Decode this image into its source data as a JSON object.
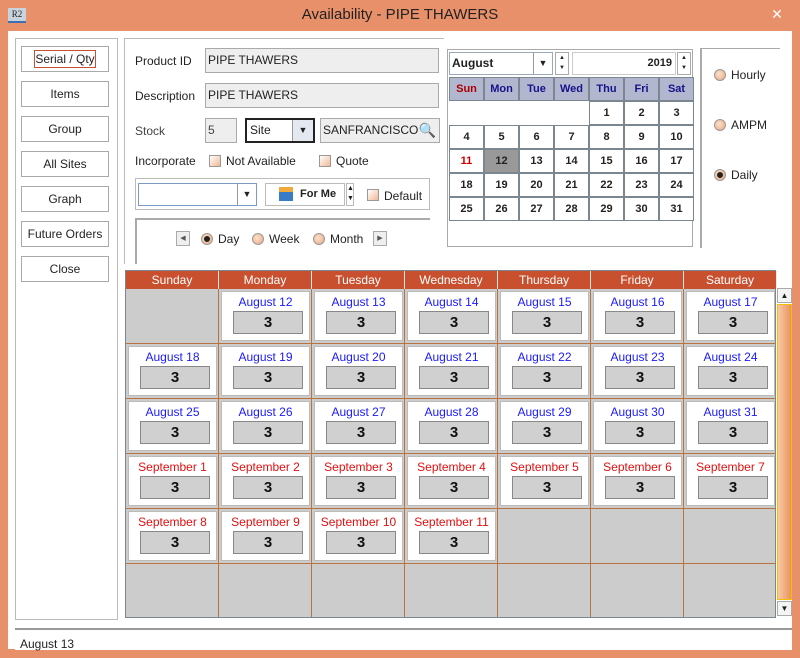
{
  "window": {
    "title": "Availability - PIPE THAWERS",
    "app_icon": "R2",
    "close": "✕"
  },
  "nav": [
    "Serial / Qty",
    "Items",
    "Group",
    "All Sites",
    "Graph",
    "Future Orders",
    "Close"
  ],
  "form": {
    "product_id_label": "Product ID",
    "product_id": "PIPE THAWERS",
    "description_label": "Description",
    "description": "PIPE THAWERS",
    "stock_label": "Stock",
    "stock": "5",
    "site_select": "Site",
    "site": "SANFRANCISCO",
    "incorporate_label": "Incorporate",
    "not_available": "Not Available",
    "quote": "Quote",
    "view_select": "",
    "for_me": "For Me",
    "default": "Default"
  },
  "period": {
    "day": "Day",
    "week": "Week",
    "month": "Month",
    "selected": "Day"
  },
  "mini_calendar": {
    "month": "August",
    "year": "2019",
    "headers": [
      "Sun",
      "Mon",
      "Tue",
      "Wed",
      "Thu",
      "Fri",
      "Sat"
    ],
    "weeks": [
      [
        "",
        "",
        "",
        "",
        "1",
        "2",
        "3"
      ],
      [
        "4",
        "5",
        "6",
        "7",
        "8",
        "9",
        "10"
      ],
      [
        "11",
        "12",
        "13",
        "14",
        "15",
        "16",
        "17"
      ],
      [
        "18",
        "19",
        "20",
        "21",
        "22",
        "23",
        "24"
      ],
      [
        "25",
        "26",
        "27",
        "28",
        "29",
        "30",
        "31"
      ]
    ],
    "selected": "12",
    "today": "11"
  },
  "granularity": {
    "hourly": "Hourly",
    "ampm": "AMPM",
    "daily": "Daily",
    "selected": "Daily"
  },
  "grid": {
    "days": [
      "Sunday",
      "Monday",
      "Tuesday",
      "Wednesday",
      "Thursday",
      "Friday",
      "Saturday"
    ],
    "weeks": [
      [
        null,
        {
          "d": "August 12",
          "q": "3"
        },
        {
          "d": "August 13",
          "q": "3"
        },
        {
          "d": "August 14",
          "q": "3"
        },
        {
          "d": "August 15",
          "q": "3"
        },
        {
          "d": "August 16",
          "q": "3"
        },
        {
          "d": "August 17",
          "q": "3"
        }
      ],
      [
        {
          "d": "August 18",
          "q": "3"
        },
        {
          "d": "August 19",
          "q": "3"
        },
        {
          "d": "August 20",
          "q": "3"
        },
        {
          "d": "August 21",
          "q": "3"
        },
        {
          "d": "August 22",
          "q": "3"
        },
        {
          "d": "August 23",
          "q": "3"
        },
        {
          "d": "August 24",
          "q": "3"
        }
      ],
      [
        {
          "d": "August 25",
          "q": "3"
        },
        {
          "d": "August 26",
          "q": "3"
        },
        {
          "d": "August 27",
          "q": "3"
        },
        {
          "d": "August 28",
          "q": "3"
        },
        {
          "d": "August 29",
          "q": "3"
        },
        {
          "d": "August 30",
          "q": "3"
        },
        {
          "d": "August 31",
          "q": "3"
        }
      ],
      [
        {
          "d": "September 1",
          "q": "3",
          "n": 1
        },
        {
          "d": "September 2",
          "q": "3",
          "n": 1
        },
        {
          "d": "September 3",
          "q": "3",
          "n": 1
        },
        {
          "d": "September 4",
          "q": "3",
          "n": 1
        },
        {
          "d": "September 5",
          "q": "3",
          "n": 1
        },
        {
          "d": "September 6",
          "q": "3",
          "n": 1
        },
        {
          "d": "September 7",
          "q": "3",
          "n": 1
        }
      ],
      [
        {
          "d": "September 8",
          "q": "3",
          "n": 1
        },
        {
          "d": "September 9",
          "q": "3",
          "n": 1
        },
        {
          "d": "September 10",
          "q": "3",
          "n": 1
        },
        {
          "d": "September 11",
          "q": "3",
          "n": 1
        },
        null,
        null,
        null
      ],
      [
        null,
        null,
        null,
        null,
        null,
        null,
        null
      ]
    ]
  },
  "status": "August 13",
  "colors": {
    "accent": "#c8502f",
    "frame": "#e8906a",
    "date_current": "#1a1aff",
    "date_next": "#e01010"
  }
}
